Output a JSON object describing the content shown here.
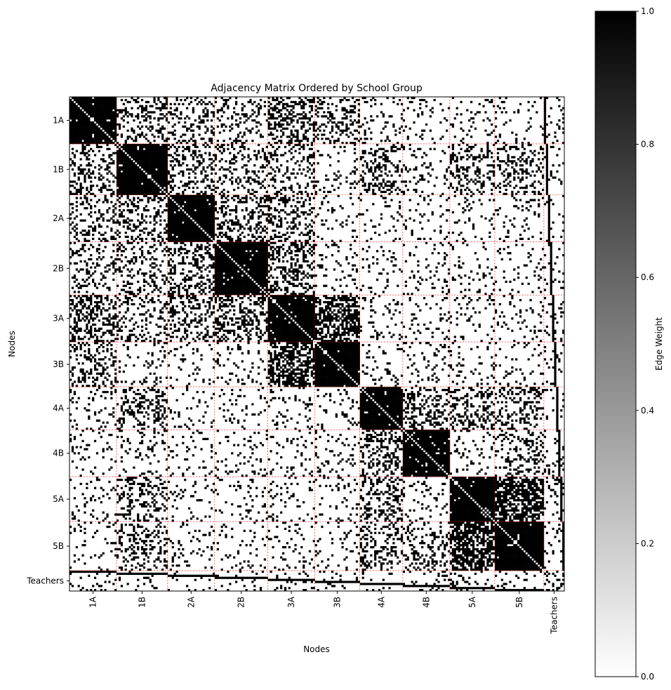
{
  "chart_data": {
    "type": "heatmap",
    "title": "Adjacency Matrix Ordered by School Group",
    "xlabel": "Nodes",
    "ylabel": "Nodes",
    "colorbar_label": "Edge Weight",
    "colorbar_ticks": [
      "0.0",
      "0.2",
      "0.4",
      "0.6",
      "0.8",
      "1.0"
    ],
    "value_range": [
      0,
      1
    ],
    "colormap": "gray_r",
    "colors": {
      "high": "#000000",
      "low": "#ffffff",
      "group_divider": "#ff0000"
    },
    "grid": false,
    "groups": [
      {
        "label": "1A",
        "size": 23
      },
      {
        "label": "1B",
        "size": 25
      },
      {
        "label": "2A",
        "size": 23
      },
      {
        "label": "2B",
        "size": 26
      },
      {
        "label": "3A",
        "size": 23
      },
      {
        "label": "3B",
        "size": 22
      },
      {
        "label": "4A",
        "size": 21
      },
      {
        "label": "4B",
        "size": 23
      },
      {
        "label": "5A",
        "size": 22
      },
      {
        "label": "5B",
        "size": 24
      },
      {
        "label": "Teachers",
        "size": 10
      }
    ],
    "within_group_density": 0.97,
    "between_group_density": {
      "default": 0.1,
      "pairs": [
        {
          "a": "1A",
          "b": "1B",
          "density": 0.3
        },
        {
          "a": "1A",
          "b": "2A",
          "density": 0.25
        },
        {
          "a": "1A",
          "b": "2B",
          "density": 0.2
        },
        {
          "a": "1A",
          "b": "3A",
          "density": 0.4
        },
        {
          "a": "1A",
          "b": "3B",
          "density": 0.3
        },
        {
          "a": "1B",
          "b": "2A",
          "density": 0.3
        },
        {
          "a": "1B",
          "b": "2B",
          "density": 0.25
        },
        {
          "a": "1B",
          "b": "3A",
          "density": 0.2
        },
        {
          "a": "1B",
          "b": "4A",
          "density": 0.3
        },
        {
          "a": "1B",
          "b": "5A",
          "density": 0.3
        },
        {
          "a": "1B",
          "b": "5B",
          "density": 0.25
        },
        {
          "a": "2A",
          "b": "2B",
          "density": 0.35
        },
        {
          "a": "2A",
          "b": "3A",
          "density": 0.3
        },
        {
          "a": "2B",
          "b": "3A",
          "density": 0.35
        },
        {
          "a": "3A",
          "b": "3B",
          "density": 0.6
        },
        {
          "a": "4A",
          "b": "4B",
          "density": 0.35
        },
        {
          "a": "4A",
          "b": "5A",
          "density": 0.3
        },
        {
          "a": "4A",
          "b": "5B",
          "density": 0.3
        },
        {
          "a": "4B",
          "b": "5B",
          "density": 0.25
        },
        {
          "a": "5A",
          "b": "5B",
          "density": 0.7
        }
      ]
    },
    "teacher_rows_note": "Teachers row/column shows solid horizontal/vertical bars aligned with each class block"
  }
}
